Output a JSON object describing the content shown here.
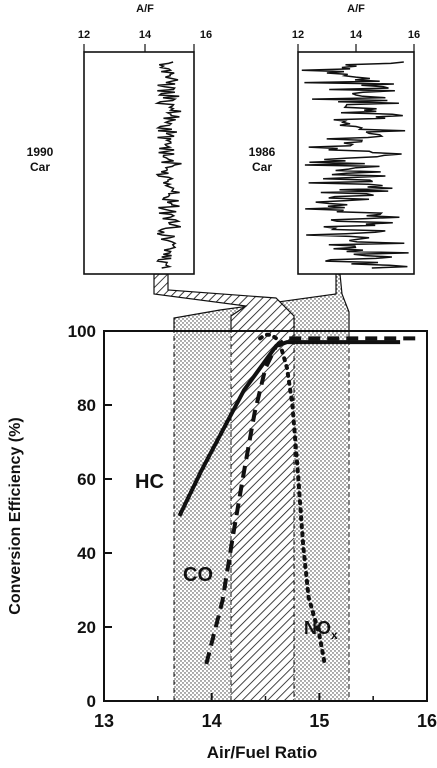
{
  "chart_data": [
    {
      "type": "line",
      "title": "",
      "xlabel": "A/F",
      "ylabel": "",
      "xlim": [
        12,
        16
      ],
      "xticks": [
        "12",
        "14",
        "16"
      ],
      "series": [
        {
          "name": "1990 Car",
          "af_mean": 14.8,
          "af_range": [
            14.4,
            15.2
          ]
        }
      ]
    },
    {
      "type": "line",
      "title": "",
      "xlabel": "A/F",
      "ylabel": "",
      "xlim": [
        12,
        16
      ],
      "xticks": [
        "12",
        "14",
        "16"
      ],
      "series": [
        {
          "name": "1986 Car",
          "af_mean": 14.0,
          "af_range": [
            12.0,
            15.9
          ]
        }
      ]
    },
    {
      "type": "line",
      "title": "",
      "xlabel": "Air/Fuel Ratio",
      "ylabel": "Conversion Efficiency (%)",
      "xlim": [
        13,
        16
      ],
      "ylim": [
        0,
        100
      ],
      "xticks": [
        "13",
        "14",
        "15",
        "16"
      ],
      "yticks": [
        "0",
        "20",
        "40",
        "60",
        "80",
        "100"
      ],
      "grid": false,
      "bands": [
        {
          "label": "1986 Car",
          "x": [
            13.8,
            15.35
          ]
        },
        {
          "label": "1990 Car",
          "x": [
            14.35,
            14.85
          ]
        }
      ],
      "series": [
        {
          "name": "HC",
          "style": "solid",
          "x": [
            13.7,
            13.9,
            14.1,
            14.3,
            14.5,
            14.6,
            14.7,
            15.0,
            15.5,
            15.75
          ],
          "y": [
            50,
            62,
            73,
            84,
            92,
            96,
            97,
            97,
            97,
            97
          ]
        },
        {
          "name": "CO",
          "style": "dashed",
          "x": [
            13.95,
            14.1,
            14.2,
            14.3,
            14.4,
            14.5,
            14.6,
            14.7,
            15.0,
            15.5,
            15.95
          ],
          "y": [
            10,
            27,
            45,
            62,
            78,
            90,
            96,
            98,
            98,
            98,
            98
          ]
        },
        {
          "name": "NO",
          "name_sub": "x",
          "style": "dotted",
          "x": [
            14.45,
            14.5,
            14.55,
            14.6,
            14.65,
            14.7,
            14.75,
            14.8,
            14.85,
            14.9,
            15.0,
            15.05
          ],
          "y": [
            98,
            99,
            99,
            98,
            95,
            90,
            80,
            62,
            42,
            28,
            18,
            10
          ]
        }
      ]
    }
  ]
}
